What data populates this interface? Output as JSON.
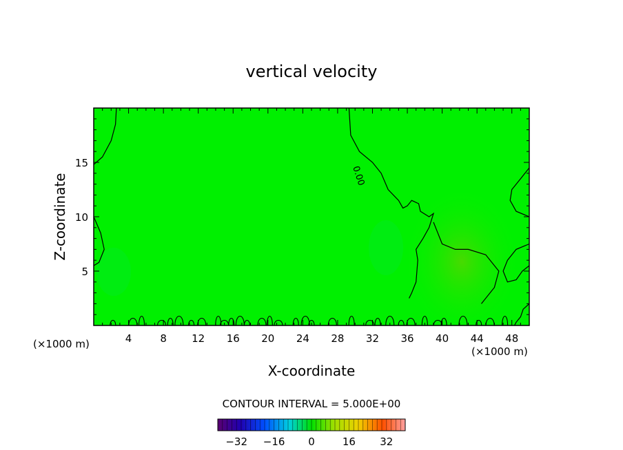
{
  "chart_data": {
    "type": "heatmap",
    "title": "vertical velocity",
    "xlabel": "X-coordinate",
    "ylabel": "Z-coordinate",
    "x_unit_left": "(×1000 m)",
    "x_unit_right": "(×1000 m)",
    "xlim": [
      0,
      50
    ],
    "ylim": [
      0,
      20
    ],
    "x_ticks": [
      4,
      8,
      12,
      16,
      20,
      24,
      28,
      32,
      36,
      40,
      44,
      48
    ],
    "y_ticks": [
      5,
      10,
      15
    ],
    "contour_interval_text": "CONTOUR INTERVAL = 5.000E+00",
    "contour_interval": 5.0,
    "contour_label": "0.00",
    "colorbar": {
      "range": [
        -40,
        40
      ],
      "ticks": [
        -32,
        -16,
        0,
        16,
        32
      ],
      "colormap": "rainbow (purple-blue-cyan-green-yellow-red)"
    },
    "field_description_colors": {
      "background_field": "#00f000",
      "weak_positive_region": "#40e000"
    },
    "zero_contours": [
      {
        "name": "left-boundary-contour",
        "points": [
          [
            0.0,
            14.8
          ],
          [
            1.0,
            15.5
          ],
          [
            2.0,
            17.0
          ],
          [
            2.5,
            18.5
          ],
          [
            2.6,
            20.0
          ]
        ]
      },
      {
        "name": "left-lower-contour",
        "points": [
          [
            0.0,
            10.0
          ],
          [
            0.8,
            8.5
          ],
          [
            1.2,
            7.0
          ],
          [
            0.6,
            5.8
          ],
          [
            0.0,
            5.5
          ]
        ]
      },
      {
        "name": "center-zero-contour",
        "points": [
          [
            29.3,
            20.0
          ],
          [
            29.5,
            17.5
          ],
          [
            30.5,
            16.0
          ],
          [
            32.0,
            15.0
          ],
          [
            33.0,
            14.0
          ],
          [
            33.8,
            12.5
          ],
          [
            35.0,
            11.5
          ],
          [
            35.5,
            10.8
          ],
          [
            36.0,
            11.0
          ],
          [
            36.5,
            11.5
          ],
          [
            37.3,
            11.2
          ],
          [
            37.5,
            10.5
          ],
          [
            38.5,
            10.0
          ],
          [
            39.0,
            10.3
          ],
          [
            38.5,
            9.0
          ],
          [
            37.8,
            8.0
          ],
          [
            37.0,
            7.0
          ],
          [
            37.2,
            6.0
          ],
          [
            37.0,
            4.0
          ],
          [
            36.5,
            3.0
          ],
          [
            36.2,
            2.5
          ]
        ]
      },
      {
        "name": "right-mid-contour",
        "points": [
          [
            39.0,
            9.5
          ],
          [
            39.5,
            8.5
          ],
          [
            40.0,
            7.5
          ],
          [
            41.5,
            7.0
          ],
          [
            43.0,
            7.0
          ],
          [
            45.0,
            6.5
          ],
          [
            46.5,
            5.0
          ],
          [
            46.0,
            3.5
          ],
          [
            45.0,
            2.5
          ],
          [
            44.5,
            2.0
          ]
        ]
      },
      {
        "name": "right-edge-contour",
        "points": [
          [
            50.0,
            14.5
          ],
          [
            49.0,
            13.5
          ],
          [
            48.0,
            12.5
          ],
          [
            47.8,
            11.5
          ],
          [
            48.5,
            10.5
          ],
          [
            50.0,
            10.0
          ]
        ]
      },
      {
        "name": "right-lower-edge-contour",
        "points": [
          [
            50.0,
            7.5
          ],
          [
            48.5,
            7.0
          ],
          [
            47.5,
            6.0
          ],
          [
            47.0,
            5.0
          ],
          [
            47.5,
            4.0
          ],
          [
            48.5,
            4.2
          ],
          [
            49.2,
            5.0
          ],
          [
            50.0,
            5.5
          ]
        ]
      },
      {
        "name": "right-bottom-contour",
        "points": [
          [
            50.0,
            2.0
          ],
          [
            49.3,
            1.5
          ],
          [
            49.0,
            0.8
          ],
          [
            48.5,
            0.3
          ],
          [
            48.3,
            0.0
          ]
        ]
      }
    ],
    "near_surface_contour_blobs_x": [
      2.2,
      4.5,
      5.5,
      7.8,
      8.8,
      9.8,
      11.2,
      12.4,
      14.3,
      15.0,
      15.8,
      16.8,
      17.6,
      19.3,
      20.2,
      21.2,
      23.2,
      24.3,
      25.0,
      27.4,
      29.6,
      31.7,
      32.6,
      34.0,
      35.3,
      36.4,
      38.0,
      39.5,
      40.2,
      42.4,
      44.2,
      45.5,
      47.2
    ]
  }
}
